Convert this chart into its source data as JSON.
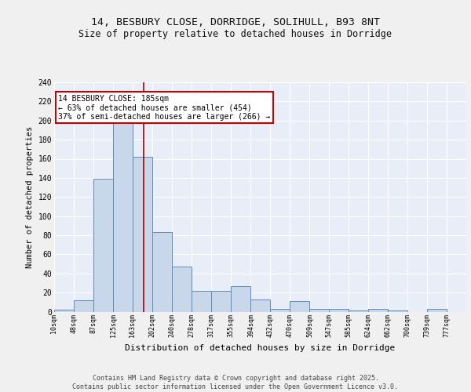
{
  "title1": "14, BESBURY CLOSE, DORRIDGE, SOLIHULL, B93 8NT",
  "title2": "Size of property relative to detached houses in Dorridge",
  "xlabel": "Distribution of detached houses by size in Dorridge",
  "ylabel": "Number of detached properties",
  "bin_edges": [
    10,
    48,
    87,
    125,
    163,
    202,
    240,
    278,
    317,
    355,
    394,
    432,
    470,
    509,
    547,
    585,
    624,
    662,
    700,
    739,
    777
  ],
  "bar_heights": [
    2,
    12,
    139,
    198,
    162,
    83,
    47,
    22,
    22,
    27,
    13,
    3,
    11,
    3,
    3,
    1,
    3,
    1,
    0,
    3
  ],
  "bar_color": "#c8d8ea",
  "bar_edge_color": "#5b8db8",
  "background_color": "#e8eef8",
  "grid_color": "#ffffff",
  "fig_background": "#f0f0f0",
  "red_line_x": 185,
  "annotation_text": "14 BESBURY CLOSE: 185sqm\n← 63% of detached houses are smaller (454)\n37% of semi-detached houses are larger (266) →",
  "annotation_box_facecolor": "#ffffff",
  "annotation_box_edgecolor": "#cc0000",
  "footer_text": "Contains HM Land Registry data © Crown copyright and database right 2025.\nContains public sector information licensed under the Open Government Licence v3.0.",
  "ylim": [
    0,
    240
  ],
  "yticks": [
    0,
    20,
    40,
    60,
    80,
    100,
    120,
    140,
    160,
    180,
    200,
    220,
    240
  ],
  "title1_fontsize": 9.5,
  "title2_fontsize": 8.5,
  "ylabel_fontsize": 7.5,
  "xlabel_fontsize": 8,
  "tick_fontsize": 6,
  "footer_fontsize": 6,
  "annot_fontsize": 7
}
